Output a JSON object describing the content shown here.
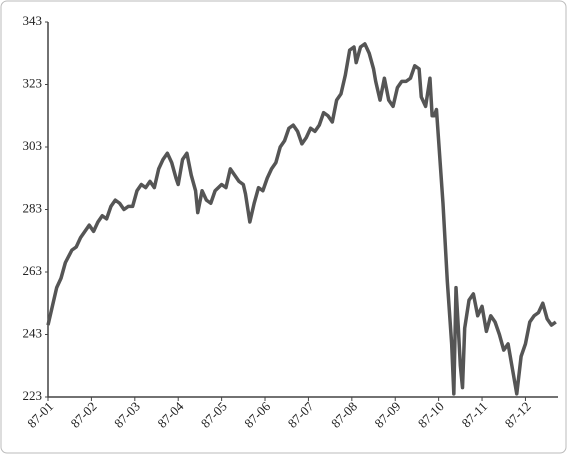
{
  "chart_data": {
    "type": "line",
    "x": [
      1.0,
      1.1,
      1.2,
      1.3,
      1.4,
      1.55,
      1.65,
      1.75,
      1.85,
      1.95,
      2.05,
      2.15,
      2.25,
      2.35,
      2.45,
      2.55,
      2.65,
      2.75,
      2.85,
      2.95,
      3.05,
      3.15,
      3.25,
      3.35,
      3.45,
      3.55,
      3.65,
      3.75,
      3.85,
      3.95,
      4.0,
      4.1,
      4.2,
      4.3,
      4.4,
      4.45,
      4.55,
      4.65,
      4.75,
      4.85,
      5.0,
      5.1,
      5.2,
      5.3,
      5.4,
      5.5,
      5.55,
      5.65,
      5.75,
      5.85,
      5.95,
      6.05,
      6.15,
      6.25,
      6.35,
      6.45,
      6.55,
      6.65,
      6.75,
      6.85,
      6.95,
      7.05,
      7.15,
      7.25,
      7.35,
      7.45,
      7.55,
      7.65,
      7.75,
      7.85,
      7.95,
      8.05,
      8.1,
      8.2,
      8.3,
      8.4,
      8.5,
      8.55,
      8.65,
      8.75,
      8.85,
      8.95,
      9.05,
      9.15,
      9.25,
      9.35,
      9.45,
      9.55,
      9.6,
      9.7,
      9.8,
      9.85,
      9.9,
      9.95,
      10.0,
      10.1,
      10.2,
      10.3,
      10.35,
      10.4,
      10.45,
      10.5,
      10.55,
      10.6,
      10.7,
      10.8,
      10.9,
      11.0,
      11.1,
      11.2,
      11.3,
      11.4,
      11.5,
      11.6,
      11.7,
      11.8,
      11.9,
      12.0,
      12.1,
      12.2,
      12.3,
      12.4,
      12.5,
      12.6,
      12.7
    ],
    "series": [
      {
        "color": "#555555",
        "values": [
          246,
          252,
          258,
          261,
          266,
          270,
          271,
          274,
          276,
          278,
          276,
          279,
          281,
          280,
          284,
          286,
          285,
          283,
          284,
          284,
          289,
          291,
          290,
          292,
          290,
          296,
          299,
          301,
          298,
          293,
          291,
          299,
          301,
          294,
          289,
          282,
          289,
          286,
          285,
          289,
          291,
          290,
          296,
          294,
          292,
          291,
          288,
          279,
          285,
          290,
          289,
          293,
          296,
          298,
          303,
          305,
          309,
          310,
          308,
          304,
          306,
          309,
          308,
          310,
          314,
          313,
          311,
          318,
          320,
          326,
          334,
          335,
          330,
          335,
          336,
          333,
          328,
          324,
          318,
          325,
          318,
          316,
          322,
          324,
          324,
          325,
          329,
          328,
          319,
          316,
          325,
          313,
          313,
          315,
          305,
          285,
          260,
          240,
          224,
          258,
          246,
          233,
          226,
          245,
          254,
          256,
          249,
          252,
          244,
          249,
          247,
          243,
          238,
          240,
          232,
          224,
          236,
          240,
          247,
          249,
          250,
          253,
          248,
          246,
          247
        ]
      }
    ],
    "xlim": [
      1,
      12.75
    ],
    "xticks": [
      {
        "value": 1,
        "label": "87-01"
      },
      {
        "value": 2,
        "label": "87-02"
      },
      {
        "value": 3,
        "label": "87-03"
      },
      {
        "value": 4,
        "label": "87-04"
      },
      {
        "value": 5,
        "label": "87-05"
      },
      {
        "value": 6,
        "label": "87-06"
      },
      {
        "value": 7,
        "label": "87-07"
      },
      {
        "value": 8,
        "label": "87-08"
      },
      {
        "value": 9,
        "label": "87-09"
      },
      {
        "value": 10,
        "label": "87-10"
      },
      {
        "value": 11,
        "label": "87-11"
      },
      {
        "value": 12,
        "label": "87-12"
      }
    ],
    "ylim": [
      223,
      343
    ],
    "yticks": [
      223,
      243,
      263,
      283,
      303,
      323,
      343
    ],
    "grid": false
  }
}
